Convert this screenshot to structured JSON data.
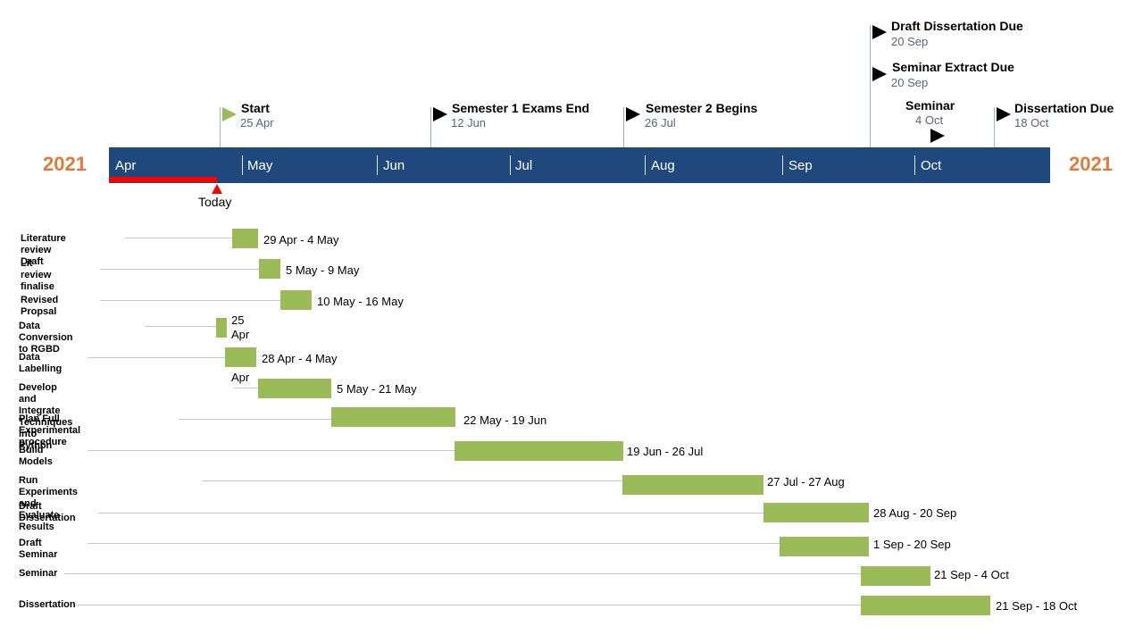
{
  "timeline": {
    "year_left": "2021",
    "year_right": "2021",
    "months": [
      "Apr",
      "May",
      "Jun",
      "Jul",
      "Aug",
      "Sep",
      "Oct"
    ],
    "today_label": "Today",
    "bar_color": "#1f497d",
    "task_color": "#9bbb59",
    "today_color": "#ff0000",
    "year_color": "#e07b39"
  },
  "milestones": [
    {
      "title": "Start",
      "date": "25 Apr"
    },
    {
      "title": "Semester 1 Exams End",
      "date": "12 Jun"
    },
    {
      "title": "Semester 2 Begins",
      "date": "26 Jul"
    },
    {
      "title": "Draft Dissertation Due",
      "date": "20 Sep"
    },
    {
      "title": "Seminar Extract Due",
      "date": "20 Sep"
    },
    {
      "title": "Seminar",
      "date": "4 Oct"
    },
    {
      "title": "Dissertation Due",
      "date": "18 Oct"
    }
  ],
  "tasks": [
    {
      "label": "Literature review Draft",
      "range": "29 Apr - 4 May"
    },
    {
      "label": "Lit review\nfinalise",
      "range": "5 May - 9 May"
    },
    {
      "label": "Revised Propsal",
      "range": "10 May - 16 May"
    },
    {
      "label": "Data Conversion to RGBD",
      "range": "25 Apr - 27\nApr"
    },
    {
      "label": "Data Labelling",
      "range": "28 Apr - 4 May"
    },
    {
      "label": "Develop and Integrate Techniques into Python",
      "range": "5 May - 21 May"
    },
    {
      "label": "Plan Full Experimental procedure",
      "range": "22 May - 19 Jun"
    },
    {
      "label": "Build Models",
      "range": "19 Jun - 26 Jul"
    },
    {
      "label": "Run Experiments and Evaluate Results",
      "range": "27 Jul - 27 Aug"
    },
    {
      "label": "Draft\nDissertation",
      "range": "28 Aug - 20 Sep"
    },
    {
      "label": "Draft Seminar",
      "range": "1 Sep - 20 Sep"
    },
    {
      "label": "Seminar",
      "range": "21 Sep - 4 Oct"
    },
    {
      "label": "Dissertation",
      "range": "21 Sep - 18 Oct"
    }
  ]
}
